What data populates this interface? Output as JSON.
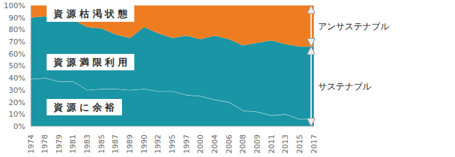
{
  "chart_data": {
    "type": "area",
    "stacked": true,
    "grid": false,
    "categories": [
      "1974",
      "1978",
      "1979",
      "1981",
      "1983",
      "1985",
      "1987",
      "1989",
      "1990",
      "1992",
      "1995",
      "1997",
      "2000",
      "2004",
      "2006",
      "2008",
      "2009",
      "2011",
      "2013",
      "2015",
      "2017"
    ],
    "series": [
      {
        "name": "資 源 に 余 裕",
        "color": "#1a95a5",
        "values": [
          39,
          40,
          37,
          37,
          30,
          31,
          31,
          30,
          31,
          29,
          29,
          26,
          25,
          22,
          20,
          13,
          12,
          9,
          10,
          6,
          6
        ]
      },
      {
        "name": "資 源 満 限 利 用",
        "color": "#1a95a5",
        "values": [
          51,
          51,
          52,
          51,
          52,
          50,
          45,
          43,
          51,
          48,
          44,
          49,
          47,
          53,
          52,
          54,
          57,
          62,
          58,
          60,
          60
        ]
      },
      {
        "name": "資 源 枯 渇 状 態",
        "color": "#ee7d22",
        "values": [
          10,
          9,
          11,
          12,
          18,
          19,
          24,
          27,
          18,
          23,
          27,
          25,
          28,
          25,
          28,
          33,
          31,
          29,
          32,
          34,
          34
        ]
      }
    ],
    "ylim": [
      0,
      100
    ],
    "yticks": [
      {
        "value": 0,
        "label": "0%"
      },
      {
        "value": 10,
        "label": "10%"
      },
      {
        "value": 20,
        "label": "20%"
      },
      {
        "value": 30,
        "label": "30%"
      },
      {
        "value": 40,
        "label": "40%"
      },
      {
        "value": 50,
        "label": "50%"
      },
      {
        "value": 60,
        "label": "60%"
      },
      {
        "value": 70,
        "label": "70%"
      },
      {
        "value": 80,
        "label": "80%"
      },
      {
        "value": 90,
        "label": "90%"
      },
      {
        "value": 100,
        "label": "100%"
      }
    ],
    "annotations": [
      {
        "text": "アンサステナブル",
        "series": [
          "資 源 枯 渇 状 態"
        ]
      },
      {
        "text": "サステナブル",
        "series": [
          "資 源 に 余 裕",
          "資 源 満 限 利 用"
        ]
      }
    ]
  }
}
